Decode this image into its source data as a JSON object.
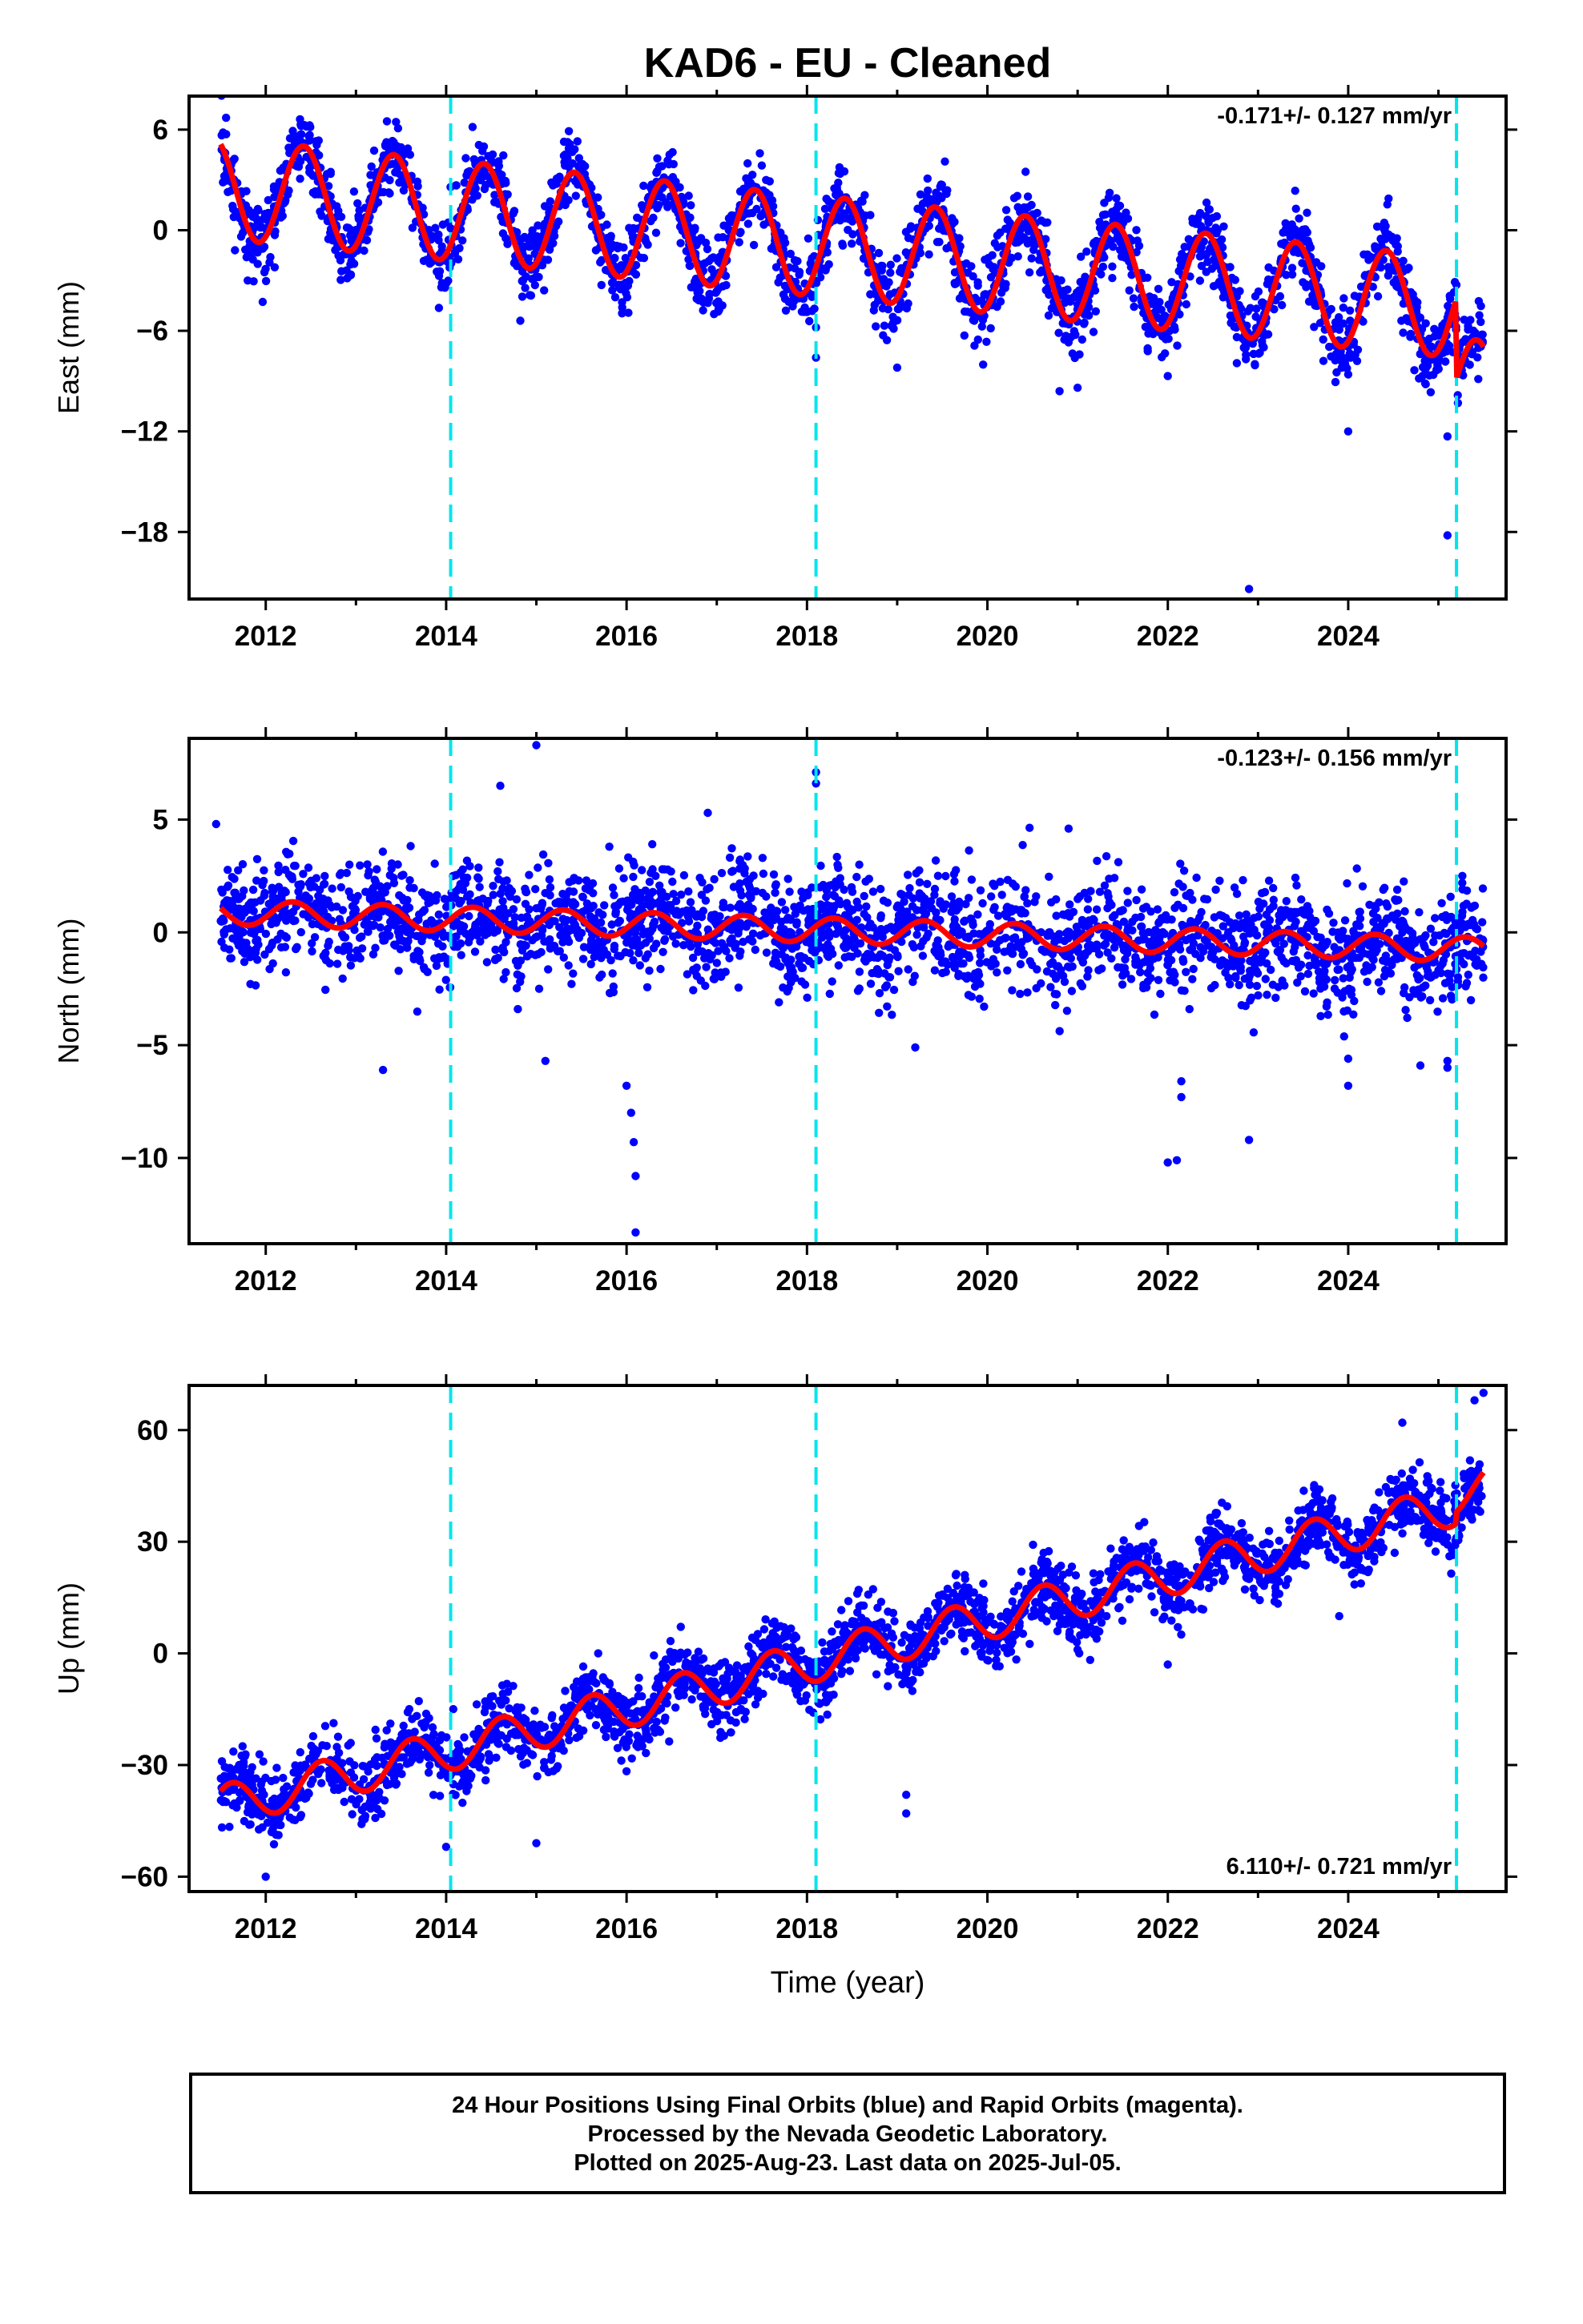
{
  "title": "KAD6  - EU - Cleaned",
  "colors": {
    "observations": "#0000ff",
    "model": "#ff0000",
    "breaks": "#00e5ee",
    "frame": "#000000"
  },
  "chart_data": [
    {
      "type": "scatter",
      "component": "east",
      "ylabel": "East (mm)",
      "ylim": [
        -22,
        8
      ],
      "yticks": [
        6,
        0,
        -6,
        -12,
        -18
      ],
      "xlim": [
        2011.15,
        2025.75
      ],
      "xticks": [
        2012,
        2014,
        2016,
        2018,
        2020,
        2022,
        2024
      ],
      "breaks": [
        2014.05,
        2018.1,
        2025.2
      ],
      "rate_text": "-0.171+/- 0.127 mm/yr",
      "rate_position": "top-right",
      "model": {
        "start": 2011.5,
        "end": 2025.5,
        "offset": 2.5,
        "trend_mm_per_yr": -0.52,
        "annual_amplitude": 3.0,
        "annual_peak": 0.42,
        "steps": [
          [
            2025.2,
            -4.8
          ]
        ]
      },
      "noise_sd": 1.1,
      "outliers": [
        [
          2011.8,
          -3.0
        ],
        [
          2018.1,
          -7.6
        ],
        [
          2019.0,
          -8.2
        ],
        [
          2020.8,
          -9.6
        ],
        [
          2021.0,
          -9.4
        ],
        [
          2022.0,
          -8.7
        ],
        [
          2022.9,
          -21.4
        ],
        [
          2023.9,
          -7.5
        ],
        [
          2024.0,
          -8.6
        ],
        [
          2024.0,
          -12.0
        ],
        [
          2025.1,
          -12.3
        ],
        [
          2025.1,
          -18.2
        ],
        [
          2018.1,
          -5.8
        ]
      ]
    },
    {
      "type": "scatter",
      "component": "north",
      "ylabel": "North (mm)",
      "ylim": [
        -13.8,
        8.6
      ],
      "yticks": [
        5,
        0,
        -5,
        -10
      ],
      "xlim": [
        2011.15,
        2025.75
      ],
      "xticks": [
        2012,
        2014,
        2016,
        2018,
        2020,
        2022,
        2024
      ],
      "breaks": [
        2014.05,
        2018.1,
        2025.2
      ],
      "rate_text": "-0.123+/- 0.156 mm/yr",
      "rate_position": "top-right",
      "model": {
        "start": 2011.5,
        "end": 2025.5,
        "offset": 0.9,
        "trend_mm_per_yr": -0.12,
        "annual_amplitude": 0.55,
        "annual_peak": 0.3,
        "steps": []
      },
      "noise_sd": 1.2,
      "outliers": [
        [
          2011.45,
          4.8
        ],
        [
          2013.3,
          -6.1
        ],
        [
          2014.6,
          6.5
        ],
        [
          2015.0,
          8.3
        ],
        [
          2015.1,
          -5.7
        ],
        [
          2016.0,
          -6.8
        ],
        [
          2016.05,
          -8.0
        ],
        [
          2016.08,
          -9.3
        ],
        [
          2016.1,
          -10.8
        ],
        [
          2016.1,
          -13.3
        ],
        [
          2016.9,
          5.3
        ],
        [
          2018.1,
          7.1
        ],
        [
          2018.1,
          6.6
        ],
        [
          2019.2,
          -5.1
        ],
        [
          2020.9,
          4.6
        ],
        [
          2022.0,
          -10.2
        ],
        [
          2022.1,
          -10.1
        ],
        [
          2022.15,
          -7.3
        ],
        [
          2022.15,
          -6.6
        ],
        [
          2022.9,
          -9.2
        ],
        [
          2024.0,
          -6.8
        ],
        [
          2024.0,
          -5.6
        ],
        [
          2024.8,
          -5.9
        ],
        [
          2025.1,
          -6.0
        ],
        [
          2025.1,
          -5.7
        ]
      ]
    },
    {
      "type": "scatter",
      "component": "up",
      "ylabel": "Up (mm)",
      "ylim": [
        -64,
        72
      ],
      "yticks": [
        60,
        30,
        0,
        -30,
        -60
      ],
      "xlim": [
        2011.15,
        2025.75
      ],
      "xticks": [
        2012,
        2014,
        2016,
        2018,
        2020,
        2022,
        2024
      ],
      "breaks": [
        2014.05,
        2018.1,
        2025.2
      ],
      "xlabel": "Time (year)",
      "rate_text": "6.110+/- 0.721 mm/yr",
      "rate_position": "bottom-right",
      "model": {
        "start": 2011.5,
        "end": 2025.5,
        "offset": -41,
        "trend_mm_per_yr": 5.9,
        "annual_amplitude": 5.5,
        "annual_peak": 0.62,
        "steps": [
          [
            2025.2,
            3.0
          ]
        ]
      },
      "noise_sd": 4.5,
      "outliers": [
        [
          2012.0,
          -60
        ],
        [
          2014.0,
          -52
        ],
        [
          2015.0,
          -51
        ],
        [
          2019.1,
          -43
        ],
        [
          2019.1,
          -38
        ],
        [
          2021.0,
          1.0
        ],
        [
          2022.0,
          -3.0
        ],
        [
          2023.9,
          10.0
        ],
        [
          2025.5,
          70
        ],
        [
          2025.4,
          68
        ],
        [
          2024.6,
          62
        ]
      ]
    }
  ],
  "footer": {
    "lines": [
      "24 Hour Positions Using Final Orbits (blue) and Rapid Orbits (magenta).",
      "Processed by the Nevada Geodetic Laboratory.",
      "Plotted on 2025-Aug-23. Last data on 2025-Jul-05."
    ]
  }
}
